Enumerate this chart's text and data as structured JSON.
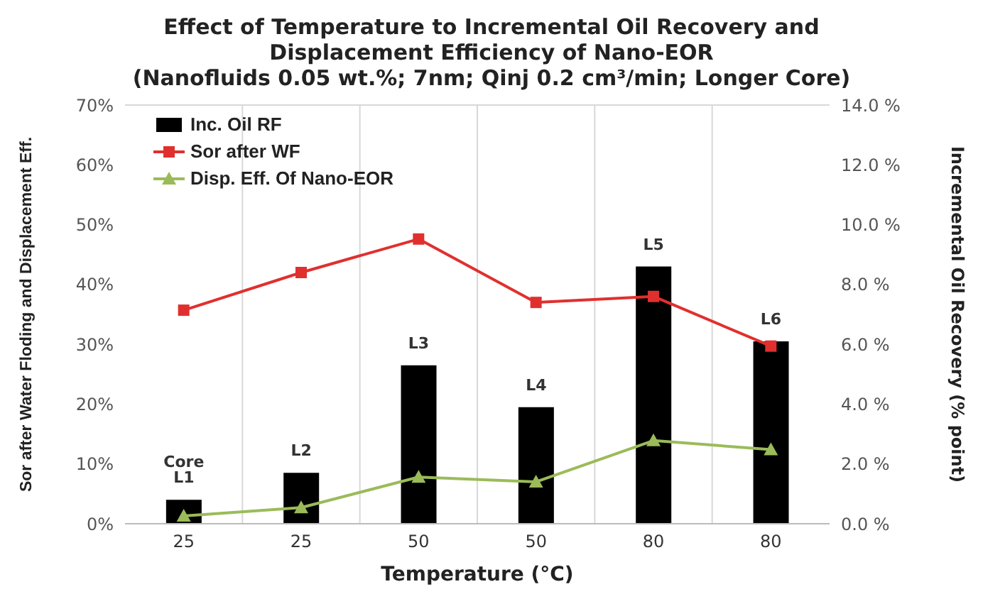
{
  "chart_data": {
    "type": "bar",
    "title": "Effect of Temperature to Incremental Oil Recovery and Displacement Efficiency of Nano-EOR",
    "subtitle": "(Nanofluids 0.05 wt.%; 7nm; Qinj 0.2 cm³/min; Longer Core)",
    "xlabel": "Temperature (°C)",
    "ylabel": "Sor after Water Floding and Displacement Eff.",
    "y2label": "Incremental Oil Recovery (% point)",
    "categories": [
      "25",
      "25",
      "50",
      "50",
      "80",
      "80"
    ],
    "series": [
      {
        "name": "Inc. Oil RF",
        "axis": "y2",
        "color": "#000000",
        "values": [
          0.8,
          1.7,
          5.3,
          3.9,
          8.6,
          6.1
        ],
        "value_labels": [
          "Core L1",
          "L2",
          "L3",
          "L4",
          "L5",
          "L6"
        ]
      },
      {
        "name": "Sor after WF",
        "type": "line",
        "color": "#e0302e",
        "marker": "square",
        "values": [
          35.7,
          42,
          47.6,
          37,
          38,
          29.7
        ]
      },
      {
        "name": "Disp. Eff. Of Nano-EOR",
        "type": "line",
        "color": "#9bbb59",
        "marker": "triangle",
        "values": [
          1.3,
          2.7,
          7.8,
          7.0,
          13.9,
          12.4
        ]
      }
    ],
    "ylim": [
      0,
      70
    ],
    "yticks": [
      {
        "value": 0,
        "label": "0%"
      },
      {
        "value": 10,
        "label": "10%"
      },
      {
        "value": 20,
        "label": "20%"
      },
      {
        "value": 30,
        "label": "30%"
      },
      {
        "value": 40,
        "label": "40%"
      },
      {
        "value": 50,
        "label": "50%"
      },
      {
        "value": 60,
        "label": "60%"
      },
      {
        "value": 70,
        "label": "70%"
      }
    ],
    "y2lim": [
      0,
      14
    ],
    "y2ticks": [
      {
        "value": 0,
        "label": "0.0 %"
      },
      {
        "value": 2,
        "label": "2.0 %"
      },
      {
        "value": 4,
        "label": "4.0 %"
      },
      {
        "value": 6,
        "label": "6.0 %"
      },
      {
        "value": 8,
        "label": "8.0 %"
      },
      {
        "value": 10,
        "label": "10.0 %"
      },
      {
        "value": 12,
        "label": "12.0 %"
      },
      {
        "value": 14,
        "label": "14.0 %"
      }
    ],
    "grid": true,
    "legend": "top left"
  }
}
